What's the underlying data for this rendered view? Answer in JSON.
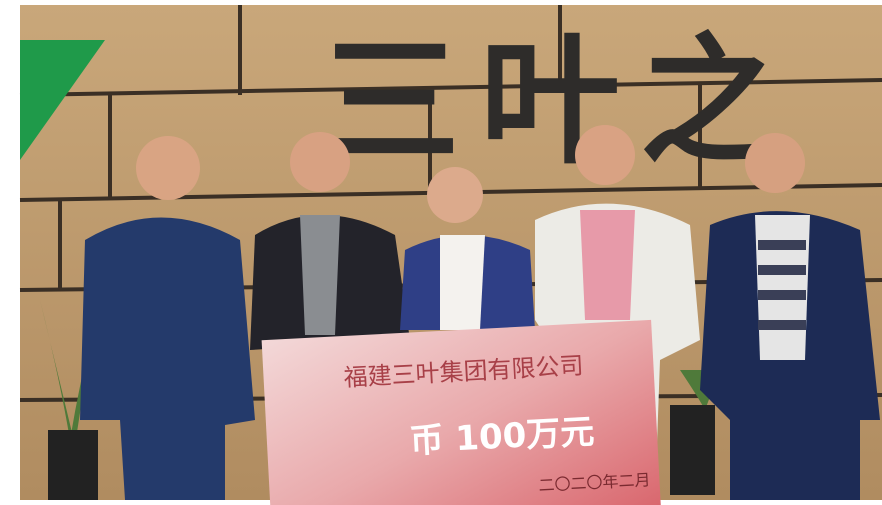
{
  "wall_sign": "三叶之",
  "check": {
    "company": "福建三叶集团有限公司",
    "amount": "币 100万元",
    "date": "二〇二〇年二月"
  }
}
